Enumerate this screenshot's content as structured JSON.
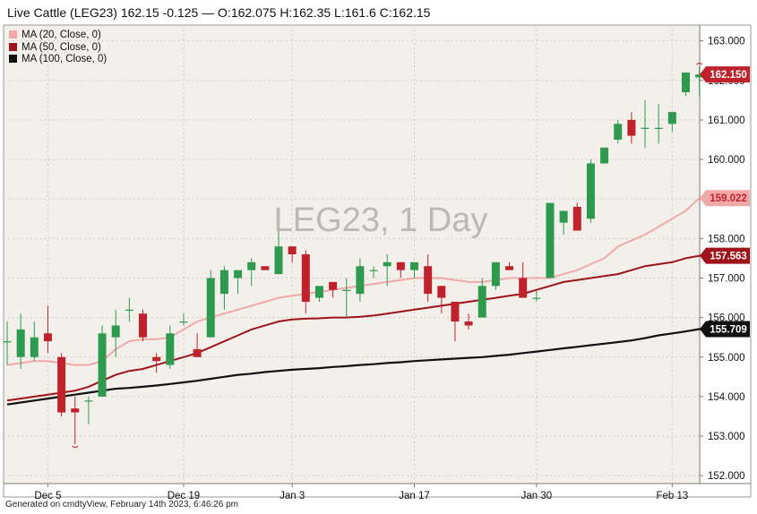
{
  "header": {
    "title": "Live Cattle (LEG23)",
    "last": "162.15",
    "change": "-0.125",
    "ohlc": "— O:162.075 H:162.35 L:161.6 C:162.15"
  },
  "watermark": "LEG23, 1 Day",
  "footer": "Generated on cmdtyView, February 14th 2023, 6:46:26 pm",
  "colors": {
    "up": "#2e9a4e",
    "down": "#c0222c",
    "ma20": "#f0a8a8",
    "ma50": "#9e1418",
    "ma100": "#111111",
    "background": "#f3f0eb",
    "grid": "#cfcac2"
  },
  "chart_data": {
    "type": "candlestick",
    "xlabels": [
      "Dec 5",
      "Dec 19",
      "Jan 3",
      "Jan 17",
      "Jan 30",
      "Feb 13"
    ],
    "yticks": [
      "152.000",
      "153.000",
      "154.000",
      "155.000",
      "156.000",
      "157.000",
      "158.000",
      "159.000",
      "160.000",
      "161.000",
      "162.000",
      "163.000"
    ],
    "ylim": [
      151.8,
      163.4
    ],
    "grid": true,
    "legend_position": "top-left",
    "legend": [
      {
        "label": "MA (20, Close, 0)",
        "color": "#f0a8a8"
      },
      {
        "label": "MA (50, Close, 0)",
        "color": "#9e1418"
      },
      {
        "label": "MA (100, Close, 0)",
        "color": "#111111"
      }
    ],
    "price_badges": [
      {
        "label": "162.150",
        "value": 162.15,
        "color": "#c0222c"
      },
      {
        "label": "159.022",
        "value": 159.022,
        "color": "#f0a8a8"
      },
      {
        "label": "157.563",
        "value": 157.563,
        "color": "#9e1418"
      },
      {
        "label": "155.709",
        "value": 155.709,
        "color": "#111111"
      }
    ],
    "candles": [
      {
        "o": 155.4,
        "h": 155.9,
        "l": 154.8,
        "c": 155.4
      },
      {
        "o": 155.0,
        "h": 156.1,
        "l": 154.7,
        "c": 155.7
      },
      {
        "o": 155.0,
        "h": 155.9,
        "l": 154.9,
        "c": 155.5
      },
      {
        "o": 155.6,
        "h": 156.3,
        "l": 155.1,
        "c": 155.4
      },
      {
        "o": 155.0,
        "h": 155.1,
        "l": 153.5,
        "c": 153.6
      },
      {
        "o": 153.7,
        "h": 154.0,
        "l": 152.8,
        "c": 153.6
      },
      {
        "o": 153.9,
        "h": 154.0,
        "l": 153.3,
        "c": 153.9
      },
      {
        "o": 154.0,
        "h": 155.8,
        "l": 154.0,
        "c": 155.6
      },
      {
        "o": 155.5,
        "h": 156.2,
        "l": 155.0,
        "c": 155.8
      },
      {
        "o": 156.2,
        "h": 156.5,
        "l": 155.9,
        "c": 156.2
      },
      {
        "o": 156.1,
        "h": 156.2,
        "l": 155.4,
        "c": 155.5
      },
      {
        "o": 155.0,
        "h": 155.1,
        "l": 154.6,
        "c": 154.9
      },
      {
        "o": 154.8,
        "h": 155.8,
        "l": 154.7,
        "c": 155.6
      },
      {
        "o": 155.9,
        "h": 156.1,
        "l": 155.8,
        "c": 155.9
      },
      {
        "o": 155.2,
        "h": 155.6,
        "l": 155.0,
        "c": 155.0
      },
      {
        "o": 155.5,
        "h": 157.2,
        "l": 155.5,
        "c": 157.0
      },
      {
        "o": 156.6,
        "h": 157.3,
        "l": 156.2,
        "c": 157.2
      },
      {
        "o": 157.0,
        "h": 157.1,
        "l": 156.6,
        "c": 157.2
      },
      {
        "o": 157.2,
        "h": 157.5,
        "l": 156.8,
        "c": 157.4
      },
      {
        "o": 157.3,
        "h": 157.3,
        "l": 157.2,
        "c": 157.2
      },
      {
        "o": 157.1,
        "h": 158.2,
        "l": 157.1,
        "c": 157.8
      },
      {
        "o": 157.8,
        "h": 157.8,
        "l": 157.4,
        "c": 157.6
      },
      {
        "o": 157.6,
        "h": 157.7,
        "l": 156.1,
        "c": 156.4
      },
      {
        "o": 156.5,
        "h": 156.8,
        "l": 156.4,
        "c": 156.8
      },
      {
        "o": 156.9,
        "h": 156.9,
        "l": 156.5,
        "c": 156.7
      },
      {
        "o": 156.7,
        "h": 157.0,
        "l": 156.0,
        "c": 156.7
      },
      {
        "o": 156.6,
        "h": 157.5,
        "l": 156.4,
        "c": 157.3
      },
      {
        "o": 157.2,
        "h": 157.3,
        "l": 157.0,
        "c": 157.2
      },
      {
        "o": 157.3,
        "h": 157.6,
        "l": 156.8,
        "c": 157.4
      },
      {
        "o": 157.4,
        "h": 157.4,
        "l": 157.0,
        "c": 157.2
      },
      {
        "o": 157.2,
        "h": 157.4,
        "l": 157.0,
        "c": 157.4
      },
      {
        "o": 157.3,
        "h": 157.6,
        "l": 156.4,
        "c": 156.6
      },
      {
        "o": 156.8,
        "h": 156.8,
        "l": 156.1,
        "c": 156.5
      },
      {
        "o": 156.4,
        "h": 156.4,
        "l": 155.4,
        "c": 155.9
      },
      {
        "o": 155.9,
        "h": 156.1,
        "l": 155.7,
        "c": 155.8
      },
      {
        "o": 156.0,
        "h": 157.0,
        "l": 156.0,
        "c": 156.8
      },
      {
        "o": 156.8,
        "h": 157.4,
        "l": 156.7,
        "c": 157.4
      },
      {
        "o": 157.3,
        "h": 157.4,
        "l": 157.2,
        "c": 157.2
      },
      {
        "o": 157.0,
        "h": 157.4,
        "l": 156.5,
        "c": 156.5
      },
      {
        "o": 156.5,
        "h": 156.7,
        "l": 156.4,
        "c": 156.5
      },
      {
        "o": 157.0,
        "h": 158.9,
        "l": 157.0,
        "c": 158.9
      },
      {
        "o": 158.4,
        "h": 158.6,
        "l": 158.1,
        "c": 158.7
      },
      {
        "o": 158.8,
        "h": 158.9,
        "l": 158.2,
        "c": 158.2
      },
      {
        "o": 158.5,
        "h": 160.0,
        "l": 158.4,
        "c": 159.9
      },
      {
        "o": 159.9,
        "h": 160.3,
        "l": 159.9,
        "c": 160.3
      },
      {
        "o": 160.5,
        "h": 161.0,
        "l": 160.4,
        "c": 160.9
      },
      {
        "o": 161.0,
        "h": 161.2,
        "l": 160.4,
        "c": 160.6
      },
      {
        "o": 160.8,
        "h": 161.5,
        "l": 160.3,
        "c": 160.8
      },
      {
        "o": 160.8,
        "h": 161.4,
        "l": 160.4,
        "c": 160.8
      },
      {
        "o": 160.9,
        "h": 161.2,
        "l": 160.7,
        "c": 161.2
      },
      {
        "o": 161.7,
        "h": 162.2,
        "l": 161.6,
        "c": 162.2
      },
      {
        "o": 162.075,
        "h": 162.35,
        "l": 161.6,
        "c": 162.15
      }
    ],
    "ma20": [
      154.8,
      154.85,
      154.9,
      154.9,
      154.85,
      154.8,
      154.8,
      154.9,
      155.2,
      155.4,
      155.45,
      155.45,
      155.5,
      155.7,
      155.9,
      156.0,
      156.1,
      156.2,
      156.3,
      156.4,
      156.5,
      156.55,
      156.6,
      156.65,
      156.7,
      156.75,
      156.8,
      156.85,
      156.9,
      156.95,
      157.0,
      157.0,
      157.0,
      156.95,
      156.9,
      156.9,
      156.95,
      157.0,
      157.0,
      157.0,
      157.0,
      157.1,
      157.2,
      157.35,
      157.5,
      157.8,
      157.95,
      158.1,
      158.3,
      158.5,
      158.7,
      159.022
    ],
    "ma50": [
      153.9,
      153.95,
      154.0,
      154.05,
      154.1,
      154.15,
      154.25,
      154.4,
      154.55,
      154.65,
      154.7,
      154.8,
      154.9,
      155.0,
      155.1,
      155.25,
      155.4,
      155.55,
      155.7,
      155.8,
      155.9,
      155.95,
      155.97,
      155.98,
      156.0,
      156.0,
      156.02,
      156.05,
      156.1,
      156.15,
      156.2,
      156.25,
      156.3,
      156.35,
      156.4,
      156.45,
      156.5,
      156.55,
      156.6,
      156.7,
      156.8,
      156.9,
      156.95,
      157.0,
      157.05,
      157.1,
      157.2,
      157.3,
      157.35,
      157.4,
      157.5,
      157.563
    ],
    "ma100": [
      153.8,
      153.85,
      153.9,
      153.95,
      154.0,
      154.05,
      154.1,
      154.15,
      154.2,
      154.22,
      154.25,
      154.28,
      154.32,
      154.36,
      154.4,
      154.45,
      154.5,
      154.55,
      154.58,
      154.62,
      154.65,
      154.68,
      154.7,
      154.72,
      154.75,
      154.77,
      154.8,
      154.82,
      154.85,
      154.87,
      154.9,
      154.92,
      154.94,
      154.96,
      154.98,
      155.0,
      155.03,
      155.06,
      155.1,
      155.14,
      155.18,
      155.22,
      155.26,
      155.3,
      155.34,
      155.38,
      155.42,
      155.48,
      155.55,
      155.6,
      155.65,
      155.709
    ]
  }
}
